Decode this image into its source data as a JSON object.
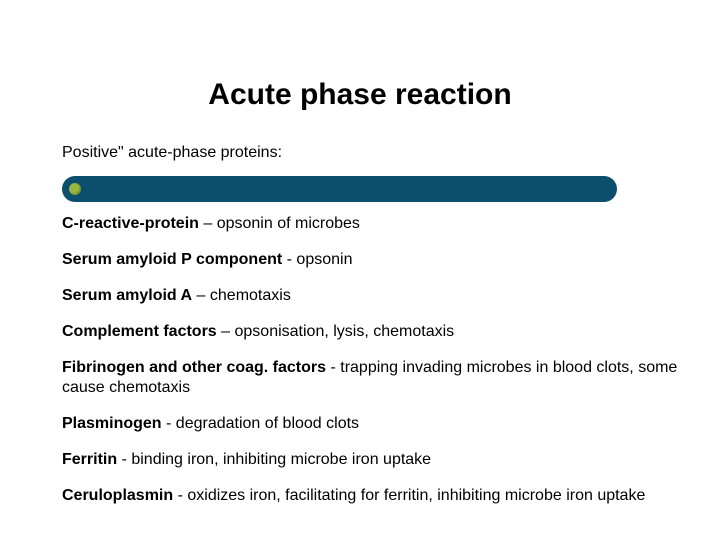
{
  "title": "Acute phase reaction",
  "subtitle": "Positive\" acute-phase proteins:",
  "bar": {
    "background_color": "#0b4e6d",
    "dot_color": "#9bb63f"
  },
  "items": [
    {
      "bold": "C-reactive-protein",
      "rest": " – opsonin of microbes"
    },
    {
      "bold": "Serum amyloid P component",
      "rest": " - opsonin"
    },
    {
      "bold": "Serum amyloid A",
      "rest": " – chemotaxis"
    },
    {
      "bold": "Complement factors",
      "rest": " – opsonisation, lysis, chemotaxis"
    },
    {
      "bold": "Fibrinogen and other coag. factors",
      "rest": " - trapping invading microbes in blood clots, some cause chemotaxis"
    },
    {
      "bold": "Plasminogen",
      "rest": " - degradation of blood clots"
    },
    {
      "bold": "Ferritin",
      "rest": " - binding iron, inhibiting microbe iron uptake"
    },
    {
      "bold": "Ceruloplasmin",
      "rest": " - oxidizes iron, facilitating for ferritin, inhibiting microbe iron uptake"
    }
  ],
  "styles": {
    "title_fontsize": 30,
    "body_fontsize": 16,
    "background_color": "#ffffff",
    "text_color": "#000000"
  }
}
